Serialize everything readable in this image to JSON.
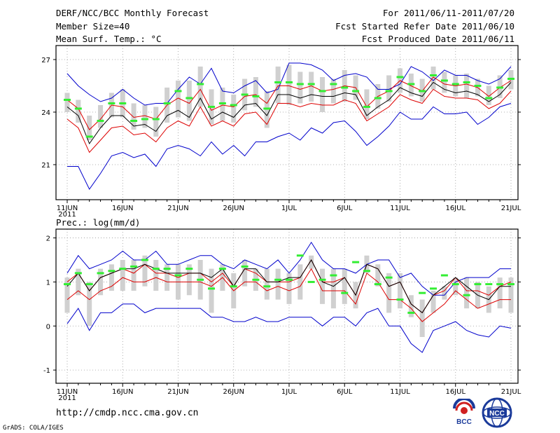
{
  "header": {
    "title": "DERF/NCC/BCC Monthly Forecast",
    "member_size": "Member Size=40",
    "range": "For 2011/06/11-2011/07/20",
    "refer_date": "Fcst Started Refer Date 2011/06/10",
    "produced_date": "Fcst Produced Date 2011/06/11"
  },
  "footer": {
    "url": "http://cmdp.ncc.cma.gov.cn",
    "credit": "GrADS: COLA/IGES",
    "logo_bcc": "BCC",
    "logo_ncc": "NCC"
  },
  "chart_data": [
    {
      "type": "line",
      "title": "Mean Surf. Temp.: °C",
      "xlabel": "",
      "ylabel": "",
      "x_start": "2011-06-11",
      "x_tick_labels": [
        "11JUN",
        "16JUN",
        "21JUN",
        "26JUN",
        "1JUL",
        "6JUL",
        "11JUL",
        "16JUL",
        "21JUL"
      ],
      "x_year_label": "2011",
      "ylim": [
        19,
        27.8
      ],
      "yticks": [
        21,
        24,
        27
      ],
      "grid": true,
      "series": [
        {
          "name": "max",
          "color": "#0000cc",
          "values": [
            26.2,
            25.5,
            25.0,
            24.6,
            24.8,
            25.3,
            24.8,
            24.4,
            24.5,
            24.5,
            25.3,
            26.0,
            25.6,
            26.5,
            25.2,
            25.1,
            25.5,
            25.8,
            25.1,
            25.3,
            26.8,
            26.8,
            26.7,
            26.4,
            25.8,
            26.1,
            26.2,
            26.0,
            25.3,
            25.3,
            25.6,
            26.6,
            26.3,
            25.8,
            26.4,
            26.1,
            26.1,
            25.8,
            25.6,
            25.9,
            26.6
          ]
        },
        {
          "name": "upper",
          "color": "#dd0000",
          "values": [
            24.7,
            24.2,
            23.0,
            23.6,
            24.4,
            24.3,
            23.7,
            23.8,
            23.6,
            24.4,
            24.8,
            24.5,
            25.3,
            24.1,
            24.4,
            24.3,
            24.9,
            25.0,
            24.5,
            25.5,
            25.5,
            25.3,
            25.5,
            25.2,
            25.3,
            25.5,
            25.4,
            24.3,
            24.9,
            25.2,
            25.8,
            25.5,
            25.2,
            26.0,
            25.6,
            25.5,
            25.6,
            25.4,
            24.9,
            25.4,
            25.8
          ]
        },
        {
          "name": "mean",
          "color": "#000000",
          "values": [
            24.3,
            23.8,
            22.2,
            23.1,
            23.8,
            23.8,
            23.2,
            23.3,
            22.9,
            23.8,
            24.1,
            23.7,
            24.8,
            23.6,
            24.0,
            23.7,
            24.4,
            24.5,
            23.8,
            25.0,
            25.0,
            24.8,
            25.0,
            24.9,
            24.9,
            25.1,
            25.0,
            23.8,
            24.3,
            24.7,
            25.4,
            25.1,
            24.9,
            25.7,
            25.3,
            25.1,
            25.2,
            25.0,
            24.6,
            25.0,
            25.7
          ]
        },
        {
          "name": "lower",
          "color": "#dd0000",
          "values": [
            23.6,
            23.1,
            21.7,
            22.4,
            23.1,
            23.2,
            22.7,
            22.8,
            22.3,
            23.1,
            23.5,
            23.2,
            24.3,
            23.2,
            23.5,
            23.2,
            23.9,
            24.0,
            23.3,
            24.5,
            24.5,
            24.3,
            24.5,
            24.4,
            24.4,
            24.7,
            24.5,
            23.5,
            23.9,
            24.3,
            25.0,
            24.7,
            24.5,
            25.3,
            24.9,
            24.8,
            24.8,
            24.7,
            24.2,
            24.5,
            25.2
          ]
        },
        {
          "name": "min",
          "color": "#0000cc",
          "values": [
            20.9,
            20.9,
            19.6,
            20.5,
            21.5,
            21.7,
            21.4,
            21.6,
            20.9,
            21.9,
            22.1,
            21.9,
            21.5,
            22.3,
            21.6,
            22.1,
            21.5,
            22.3,
            22.3,
            22.6,
            22.8,
            22.4,
            23.1,
            22.8,
            23.4,
            23.5,
            22.9,
            22.1,
            22.6,
            23.2,
            24.0,
            23.6,
            23.6,
            24.3,
            23.9,
            23.9,
            24.0,
            23.3,
            23.7,
            24.3,
            24.5
          ]
        }
      ],
      "box_low": [
        24.0,
        23.4,
        22.4,
        23.1,
        23.7,
        23.7,
        23.0,
        23.1,
        22.6,
        23.4,
        23.7,
        23.5,
        24.3,
        23.3,
        23.5,
        23.4,
        24.1,
        24.3,
        23.1,
        24.5,
        24.4,
        24.5,
        24.6,
        24.0,
        24.5,
        24.6,
        24.7,
        23.6,
        24.2,
        24.6,
        25.1,
        24.9,
        24.6,
        25.3,
        25.1,
        24.9,
        24.8,
        24.9,
        24.4,
        24.8,
        25.3
      ],
      "box_high": [
        25.1,
        24.7,
        23.8,
        24.4,
        25.1,
        25.3,
        24.5,
        24.4,
        24.3,
        25.4,
        25.8,
        25.8,
        26.6,
        25.3,
        25.4,
        25.0,
        25.9,
        26.0,
        25.2,
        26.6,
        26.7,
        26.3,
        26.3,
        26.0,
        25.9,
        26.4,
        26.1,
        25.3,
        25.6,
        26.1,
        26.5,
        26.2,
        25.9,
        26.6,
        26.3,
        26.1,
        26.2,
        25.9,
        25.5,
        26.1,
        26.4
      ],
      "observed": [
        24.7,
        24.2,
        22.6,
        23.5,
        24.5,
        24.5,
        23.5,
        23.6,
        23.6,
        24.5,
        25.2,
        24.8,
        25.6,
        24.3,
        24.5,
        24.4,
        25.0,
        24.9,
        24.2,
        25.7,
        25.7,
        25.6,
        25.6,
        25.2,
        25.6,
        25.4,
        25.2,
        24.3,
        24.8,
        25.2,
        26.0,
        25.6,
        25.2,
        26.1,
        25.8,
        25.6,
        25.7,
        25.5,
        24.8,
        25.4,
        25.9
      ]
    },
    {
      "type": "line",
      "title": "Prec.: log(mm/d)",
      "xlabel": "",
      "ylabel": "",
      "x_start": "2011-06-11",
      "x_tick_labels": [
        "11JUN",
        "16JUN",
        "21JUN",
        "26JUN",
        "1JUL",
        "6JUL",
        "11JUL",
        "16JUL",
        "21JUL"
      ],
      "x_year_label": "2011",
      "ylim": [
        -1.3,
        2.2
      ],
      "yticks": [
        -1,
        0,
        1,
        2
      ],
      "grid": true,
      "series": [
        {
          "name": "max",
          "color": "#0000cc",
          "values": [
            1.2,
            1.6,
            1.3,
            1.4,
            1.5,
            1.7,
            1.5,
            1.5,
            1.7,
            1.4,
            1.4,
            1.5,
            1.6,
            1.6,
            1.4,
            1.3,
            1.5,
            1.4,
            1.3,
            1.5,
            1.2,
            1.5,
            1.9,
            1.5,
            1.3,
            1.3,
            1.2,
            1.4,
            1.5,
            1.5,
            1.1,
            1.2,
            0.9,
            0.7,
            0.7,
            1.0,
            1.1,
            1.1,
            1.1,
            1.3,
            1.3
          ]
        },
        {
          "name": "upper",
          "color": "#dd0000",
          "values": [
            1.0,
            1.2,
            0.8,
            1.1,
            1.2,
            1.3,
            1.2,
            1.4,
            1.2,
            1.2,
            1.1,
            1.2,
            1.2,
            1.0,
            1.2,
            0.9,
            1.3,
            1.2,
            1.0,
            1.0,
            1.0,
            1.1,
            1.5,
            1.0,
            1.0,
            1.1,
            0.7,
            1.4,
            1.3,
            0.9,
            1.0,
            0.5,
            0.3,
            0.7,
            0.8,
            1.1,
            0.8,
            0.8,
            0.7,
            0.9,
            1.0
          ]
        },
        {
          "name": "mean",
          "color": "#000000",
          "values": [
            0.9,
            1.2,
            0.8,
            1.1,
            1.2,
            1.3,
            1.3,
            1.4,
            1.3,
            1.2,
            1.2,
            1.2,
            1.2,
            1.1,
            1.3,
            0.9,
            1.3,
            1.3,
            1.0,
            1.0,
            1.1,
            1.1,
            1.5,
            1.0,
            0.9,
            1.1,
            0.7,
            1.4,
            1.3,
            0.9,
            1.0,
            0.5,
            0.3,
            0.7,
            0.9,
            1.1,
            0.9,
            0.7,
            0.6,
            0.9,
            0.9
          ]
        },
        {
          "name": "lower",
          "color": "#dd0000",
          "values": [
            0.6,
            0.8,
            0.6,
            0.8,
            0.9,
            1.1,
            1.0,
            1.0,
            1.1,
            1.0,
            1.0,
            1.0,
            1.0,
            0.9,
            1.1,
            0.8,
            1.0,
            1.0,
            0.8,
            0.9,
            0.8,
            0.9,
            1.3,
            0.8,
            0.8,
            0.8,
            0.5,
            1.2,
            1.0,
            0.6,
            0.6,
            0.4,
            0.1,
            0.3,
            0.5,
            0.8,
            0.6,
            0.4,
            0.5,
            0.6,
            0.6
          ]
        },
        {
          "name": "min",
          "color": "#0000cc",
          "values": [
            0.05,
            0.4,
            -0.1,
            0.3,
            0.3,
            0.5,
            0.5,
            0.3,
            0.4,
            0.4,
            0.4,
            0.4,
            0.4,
            0.2,
            0.2,
            0.1,
            0.1,
            0.2,
            0.1,
            0.1,
            0.2,
            0.2,
            0.2,
            0.0,
            0.2,
            0.2,
            0.0,
            0.3,
            0.4,
            0.0,
            0.0,
            -0.4,
            -0.6,
            -0.1,
            0.0,
            0.1,
            -0.1,
            -0.2,
            -0.25,
            0.0,
            -0.05
          ]
        },
        {
          "name": "max_filler",
          "color": "#0000cc",
          "values": []
        }
      ],
      "box_low": [
        0.3,
        0.7,
        0.0,
        0.7,
        0.8,
        0.8,
        0.8,
        0.9,
        0.8,
        0.8,
        0.6,
        0.7,
        0.6,
        0.3,
        0.8,
        0.4,
        0.9,
        0.8,
        0.6,
        0.6,
        0.5,
        0.6,
        1.3,
        0.5,
        0.4,
        0.5,
        0.4,
        1.2,
        0.9,
        0.3,
        0.4,
        0.2,
        -0.25,
        0.3,
        0.6,
        0.7,
        0.4,
        0.4,
        0.3,
        0.4,
        0.3
      ],
      "box_high": [
        1.1,
        1.3,
        1.0,
        1.3,
        1.4,
        1.5,
        1.5,
        1.6,
        1.5,
        1.4,
        1.4,
        1.4,
        1.5,
        1.3,
        1.4,
        1.2,
        1.5,
        1.3,
        1.3,
        1.3,
        1.2,
        1.4,
        1.6,
        1.3,
        1.3,
        1.3,
        1.0,
        1.6,
        1.4,
        1.2,
        1.2,
        0.7,
        0.6,
        0.8,
        0.9,
        1.1,
        1.1,
        1.0,
        0.9,
        1.1,
        1.1
      ],
      "observed": [
        0.95,
        1.2,
        0.95,
        1.2,
        1.25,
        1.3,
        1.35,
        1.5,
        1.3,
        1.3,
        1.15,
        1.3,
        1.05,
        0.85,
        1.3,
        0.9,
        1.35,
        1.05,
        0.9,
        1.05,
        1.05,
        1.6,
        1.0,
        1.05,
        1.15,
        0.75,
        1.45,
        1.25,
        0.95,
        1.1,
        0.6,
        0.3,
        0.75,
        0.85,
        1.15,
        0.95,
        0.7,
        0.95,
        0.95,
        0.95,
        0.95
      ]
    }
  ]
}
